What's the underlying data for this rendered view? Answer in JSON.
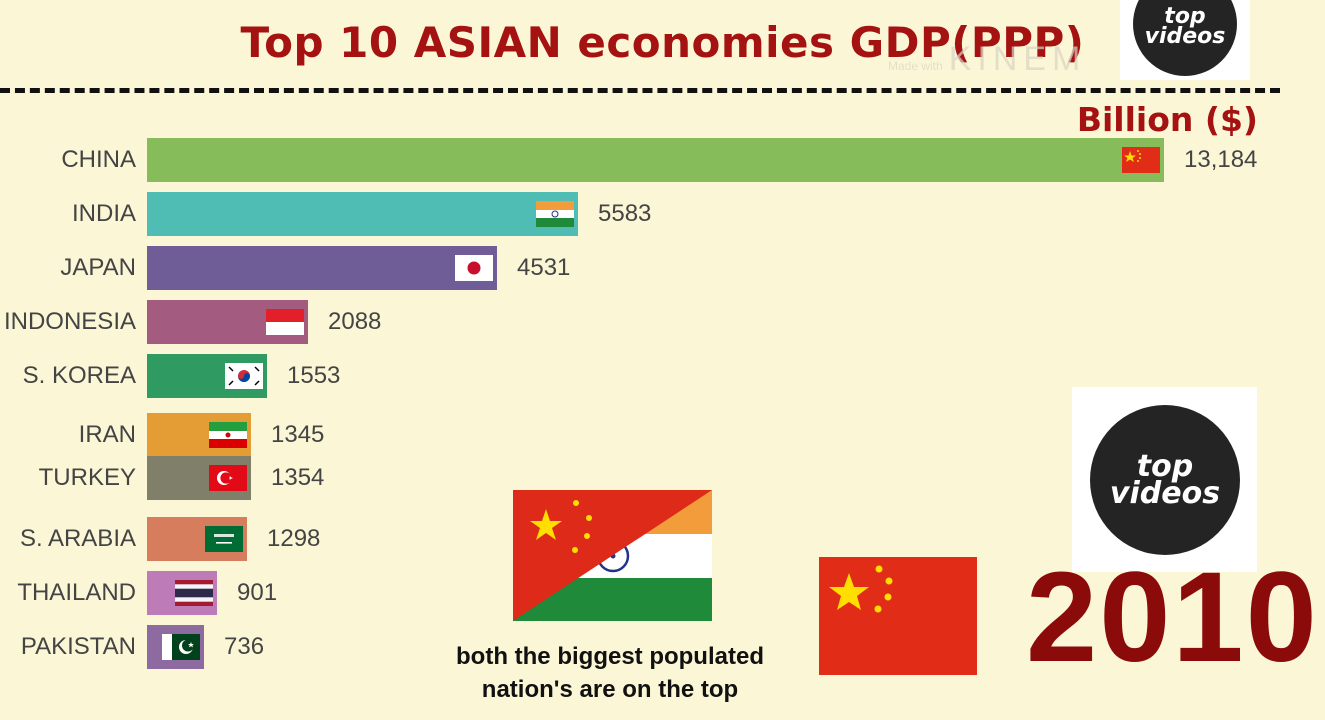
{
  "title": "Top 10 ASIAN economies GDP(PPP)",
  "watermark": {
    "small": "Made with",
    "big": "KINEM"
  },
  "unit_label": "Billion ($)",
  "logo": {
    "line1": "top",
    "line2": "videos"
  },
  "caption": {
    "line1": "both the biggest populated",
    "line2": "nation's are on the top"
  },
  "year": "2010",
  "chart_data": {
    "type": "bar",
    "orientation": "horizontal",
    "title": "Top 10 ASIAN economies GDP(PPP)",
    "unit": "Billion ($)",
    "categories": [
      "CHINA",
      "INDIA",
      "JAPAN",
      "INDONESIA",
      "S. KOREA",
      "IRAN",
      "TURKEY",
      "S. ARABIA",
      "THAILAND",
      "PAKISTAN"
    ],
    "values": [
      13184,
      5583,
      4531,
      2088,
      1553,
      1345,
      1354,
      1298,
      901,
      736
    ],
    "value_labels": [
      "13,184",
      "5583",
      "4531",
      "2088",
      "1553",
      "1345",
      "1354",
      "1298",
      "901",
      "736"
    ],
    "colors": [
      "#86bc5a",
      "#4fbdb4",
      "#6e5d96",
      "#a35c80",
      "#2f9a62",
      "#e49c34",
      "#80806a",
      "#d57d5c",
      "#bd7bb8",
      "#8d6aa0"
    ],
    "flags": [
      "china",
      "india",
      "japan",
      "indonesia",
      "south-korea",
      "iran",
      "turkey",
      "saudi-arabia",
      "thailand",
      "pakistan"
    ],
    "xlim": [
      0,
      13184
    ],
    "grid": false,
    "legend": "none"
  }
}
